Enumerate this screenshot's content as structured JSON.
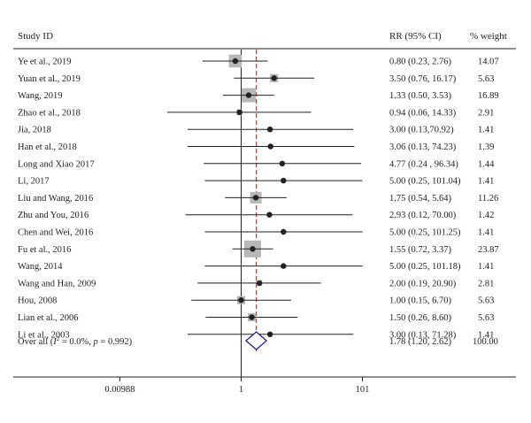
{
  "chart_data": {
    "type": "forest",
    "headers": {
      "study": "Study ID",
      "rr": "RR (95% CI)",
      "weight": "% weight"
    },
    "studies": [
      {
        "label": "Ye et al., 2019",
        "rr": 0.8,
        "lower": 0.23,
        "upper": 2.76,
        "rr_text": "0.80 (0.23, 2.76)",
        "weight": 14.07,
        "weight_text": "14.07"
      },
      {
        "label": "Yuan et al., 2019",
        "rr": 3.5,
        "lower": 0.76,
        "upper": 16.17,
        "rr_text": "3.50 (0.76, 16.17)",
        "weight": 5.63,
        "weight_text": "5.63"
      },
      {
        "label": "Wang, 2019",
        "rr": 1.33,
        "lower": 0.5,
        "upper": 3.53,
        "rr_text": "1.33 (0.50, 3.53)",
        "weight": 16.89,
        "weight_text": "16.89"
      },
      {
        "label": "Zhao et al., 2018",
        "rr": 0.94,
        "lower": 0.06,
        "upper": 14.33,
        "rr_text": "0.94 (0.06, 14.33)",
        "weight": 2.91,
        "weight_text": "2.91"
      },
      {
        "label": "Jia, 2018",
        "rr": 3.0,
        "lower": 0.13,
        "upper": 70.92,
        "rr_text": "3.00 (0.13,70.92)",
        "weight": 1.41,
        "weight_text": "1.41"
      },
      {
        "label": "Han et al., 2018",
        "rr": 3.06,
        "lower": 0.13,
        "upper": 74.23,
        "rr_text": "3.06 (0.13, 74.23)",
        "weight": 1.39,
        "weight_text": "1.39"
      },
      {
        "label": "Long and Xiao 2017",
        "rr": 4.77,
        "lower": 0.24,
        "upper": 96.34,
        "rr_text": "4.77 (0.24 , 96.34)",
        "weight": 1.44,
        "weight_text": "1.44"
      },
      {
        "label": "Li, 2017",
        "rr": 5.0,
        "lower": 0.25,
        "upper": 101.04,
        "rr_text": "5.00 (0.25, 101.04)",
        "weight": 1.41,
        "weight_text": "1.41"
      },
      {
        "label": "Liu and Wang, 2016",
        "rr": 1.75,
        "lower": 0.54,
        "upper": 5.64,
        "rr_text": "1.75 (0.54, 5.64)",
        "weight": 11.26,
        "weight_text": "11.26"
      },
      {
        "label": "Zhu and You, 2016",
        "rr": 2.93,
        "lower": 0.12,
        "upper": 70.0,
        "rr_text": "2.93 (0.12, 70.00)",
        "weight": 1.42,
        "weight_text": "1.42"
      },
      {
        "label": "Chen and Wei, 2016",
        "rr": 5.0,
        "lower": 0.25,
        "upper": 101.25,
        "rr_text": "5.00 (0.25, 101.25)",
        "weight": 1.41,
        "weight_text": "1.41"
      },
      {
        "label": "Fu et al., 2016",
        "rr": 1.55,
        "lower": 0.72,
        "upper": 3.37,
        "rr_text": "1.55 (0.72, 3.37)",
        "weight": 23.87,
        "weight_text": "23.87"
      },
      {
        "label": "Wang, 2014",
        "rr": 5.0,
        "lower": 0.25,
        "upper": 101.18,
        "rr_text": "5.00 (0.25, 101.18)",
        "weight": 1.41,
        "weight_text": "1.41"
      },
      {
        "label": "Wang and Han, 2009",
        "rr": 2.0,
        "lower": 0.19,
        "upper": 20.9,
        "rr_text": "2.00 (0.19, 20.90)",
        "weight": 2.81,
        "weight_text": "2.81"
      },
      {
        "label": "Hou, 2008",
        "rr": 1.0,
        "lower": 0.15,
        "upper": 6.7,
        "rr_text": "1.00 (0.15, 6.70)",
        "weight": 5.63,
        "weight_text": "5.63"
      },
      {
        "label": "Lian et al., 2006",
        "rr": 1.5,
        "lower": 0.26,
        "upper": 8.6,
        "rr_text": "1.50 (0.26, 8.60)",
        "weight": 5.63,
        "weight_text": "5.63"
      },
      {
        "label": "Li et al., 2003",
        "rr": 3.0,
        "lower": 0.13,
        "upper": 71.28,
        "rr_text": "3.00 (0.13, 71.28)",
        "weight": 1.41,
        "weight_text": "1.41"
      }
    ],
    "overall": {
      "label_prefix": "Over all (",
      "i2_symbol": "I",
      "i2_sup": "2",
      "label_suffix": " = 0.0%, ",
      "p_symbol": "p",
      "p_text": " = 0.992)",
      "rr": 1.78,
      "lower": 1.2,
      "upper": 2.62,
      "rr_text": "1.78 (1.20, 2.62)",
      "weight": 100.0,
      "weight_text": "100.00"
    },
    "x_axis": {
      "scale": "log",
      "ticks": [
        {
          "value": 0.00988,
          "label": "0.00988"
        },
        {
          "value": 1,
          "label": "1"
        },
        {
          "value": 101,
          "label": "101"
        }
      ],
      "null_line": 1
    },
    "colors": {
      "text": "#222222",
      "lines": "#222222",
      "weight_box": "#b8b8b8",
      "pooled_line": "#c0392b",
      "diamond": "#2c2c8a"
    }
  }
}
